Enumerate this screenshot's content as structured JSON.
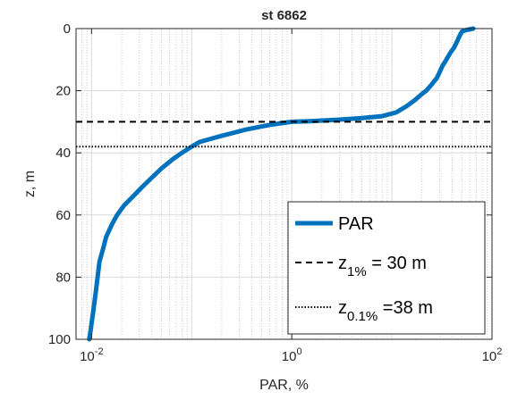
{
  "chart_data": {
    "type": "line",
    "title": "st 6862",
    "xlabel": "PAR, %",
    "ylabel": "z, m",
    "xscale": "log",
    "xlim": [
      0.007,
      100
    ],
    "ylim": [
      0,
      100
    ],
    "y_reversed": true,
    "grid": "on (major and minor)",
    "xticks": [
      {
        "value": 0.01,
        "base": "10",
        "exp": "-2"
      },
      {
        "value": 1,
        "base": "10",
        "exp": "0"
      },
      {
        "value": 100,
        "base": "10",
        "exp": "2"
      }
    ],
    "yticks": [
      {
        "value": 0,
        "label": "0"
      },
      {
        "value": 20,
        "label": "20"
      },
      {
        "value": 40,
        "label": "40"
      },
      {
        "value": 60,
        "label": "60"
      },
      {
        "value": 80,
        "label": "80"
      },
      {
        "value": 100,
        "label": "100"
      }
    ],
    "series": [
      {
        "name": "PAR",
        "color": "#0072BD",
        "style": "solid",
        "points": [
          [
            65,
            0
          ],
          [
            55,
            0.5
          ],
          [
            50,
            1
          ],
          [
            48,
            2
          ],
          [
            45,
            4
          ],
          [
            42,
            6
          ],
          [
            38,
            8
          ],
          [
            35,
            10
          ],
          [
            32,
            12
          ],
          [
            30,
            14
          ],
          [
            28,
            16
          ],
          [
            25,
            18
          ],
          [
            22,
            20
          ],
          [
            20,
            21
          ],
          [
            17,
            23
          ],
          [
            14,
            25
          ],
          [
            11,
            27
          ],
          [
            8,
            28.2
          ],
          [
            5,
            28.8
          ],
          [
            3,
            29.3
          ],
          [
            1.5,
            29.8
          ],
          [
            1,
            30
          ],
          [
            0.6,
            31
          ],
          [
            0.35,
            32.5
          ],
          [
            0.2,
            34.5
          ],
          [
            0.12,
            36.5
          ],
          [
            0.1,
            38
          ],
          [
            0.08,
            40
          ],
          [
            0.065,
            42
          ],
          [
            0.05,
            45
          ],
          [
            0.04,
            48
          ],
          [
            0.032,
            51
          ],
          [
            0.026,
            54
          ],
          [
            0.021,
            57
          ],
          [
            0.018,
            60
          ],
          [
            0.016,
            63
          ],
          [
            0.014,
            67
          ],
          [
            0.013,
            71
          ],
          [
            0.012,
            75
          ],
          [
            0.0115,
            80
          ],
          [
            0.011,
            85
          ],
          [
            0.0105,
            90
          ],
          [
            0.01,
            95
          ],
          [
            0.0097,
            98
          ],
          [
            0.0095,
            100
          ]
        ]
      },
      {
        "name": "z_1% = 30 m",
        "legend_main": "z",
        "legend_sub": "1%",
        "legend_rest": " = 30 m",
        "color": "#000000",
        "style": "dashed",
        "y": 30
      },
      {
        "name": "z_0.1% =38 m",
        "legend_main": "z",
        "legend_sub": "0.1%",
        "legend_rest": " =38 m",
        "color": "#000000",
        "style": "dotted",
        "y": 38
      }
    ],
    "legend": {
      "position": "bottom-right"
    }
  }
}
